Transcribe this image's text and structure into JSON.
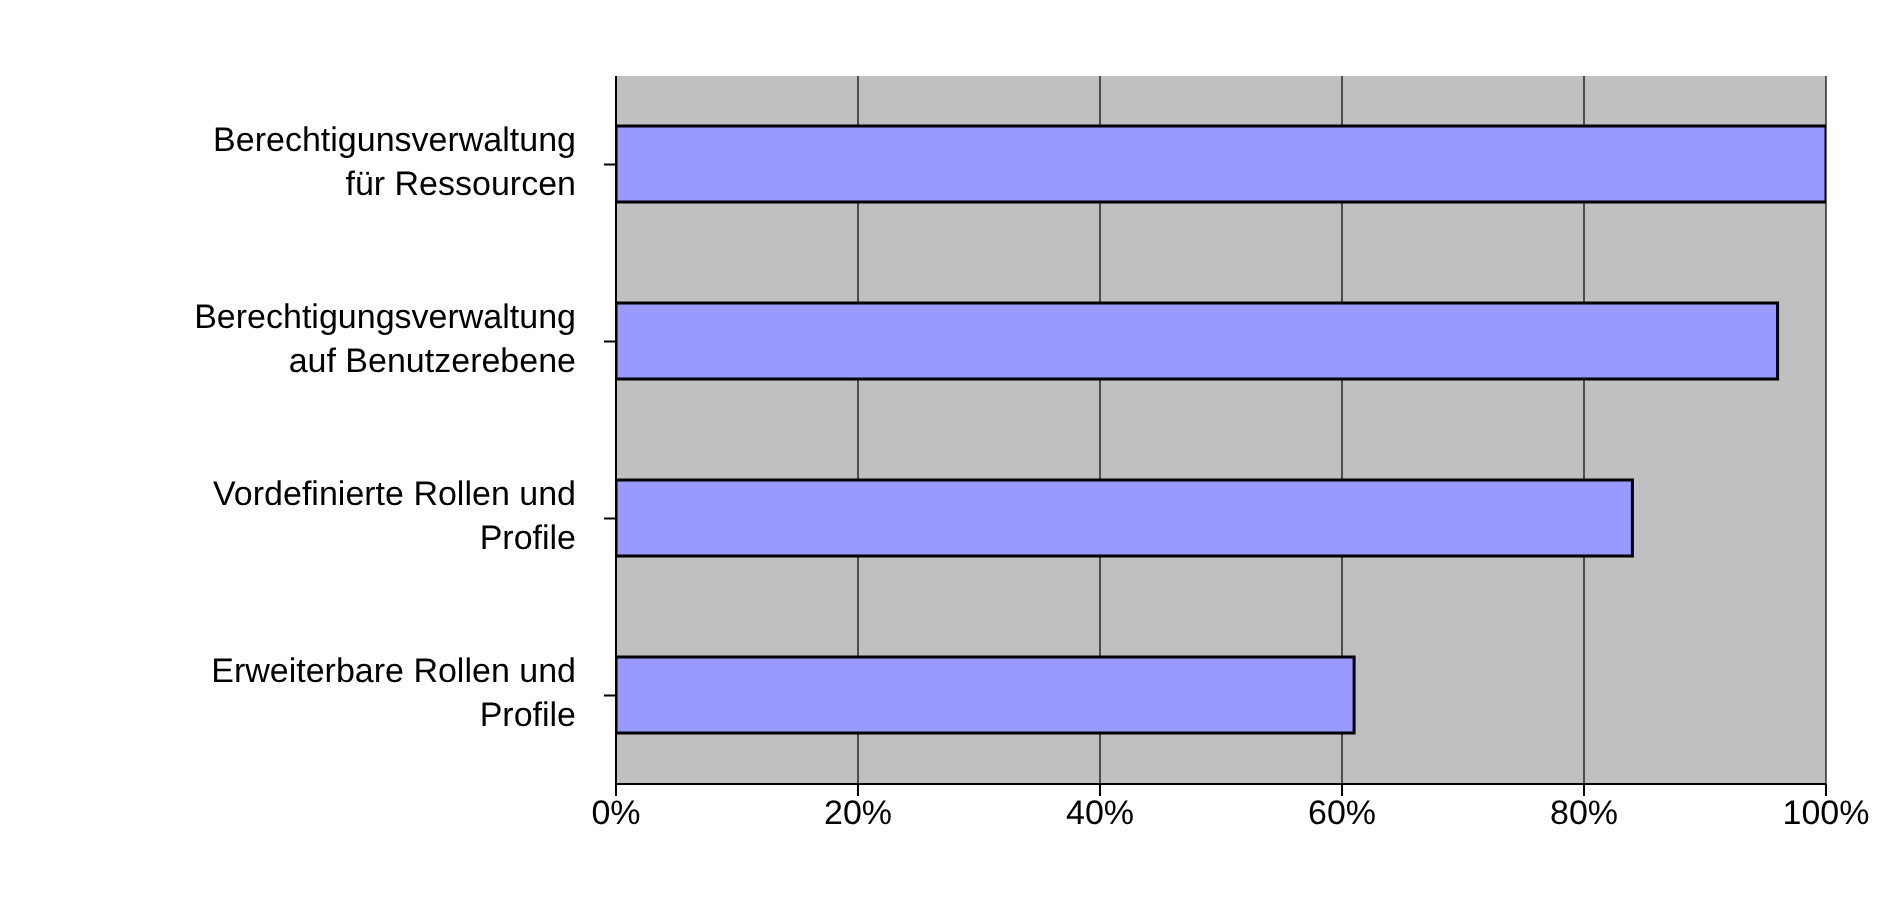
{
  "chart_data": {
    "type": "bar",
    "orientation": "horizontal",
    "categories": [
      "Berechtigunsverwaltung für Ressourcen",
      "Berechtigungsverwaltung auf Benutzerebene",
      "Vordefinierte Rollen und Profile",
      "Erweiterbare Rollen und Profile"
    ],
    "values": [
      100,
      96,
      84,
      61
    ],
    "color": "#9999ff",
    "xlim": [
      0,
      100
    ],
    "xticks": [
      {
        "value": 0,
        "label": "0%"
      },
      {
        "value": 20,
        "label": "20%"
      },
      {
        "value": 40,
        "label": "40%"
      },
      {
        "value": 60,
        "label": "60%"
      },
      {
        "value": 80,
        "label": "80%"
      },
      {
        "value": 100,
        "label": "100%"
      }
    ],
    "grid": "x"
  }
}
